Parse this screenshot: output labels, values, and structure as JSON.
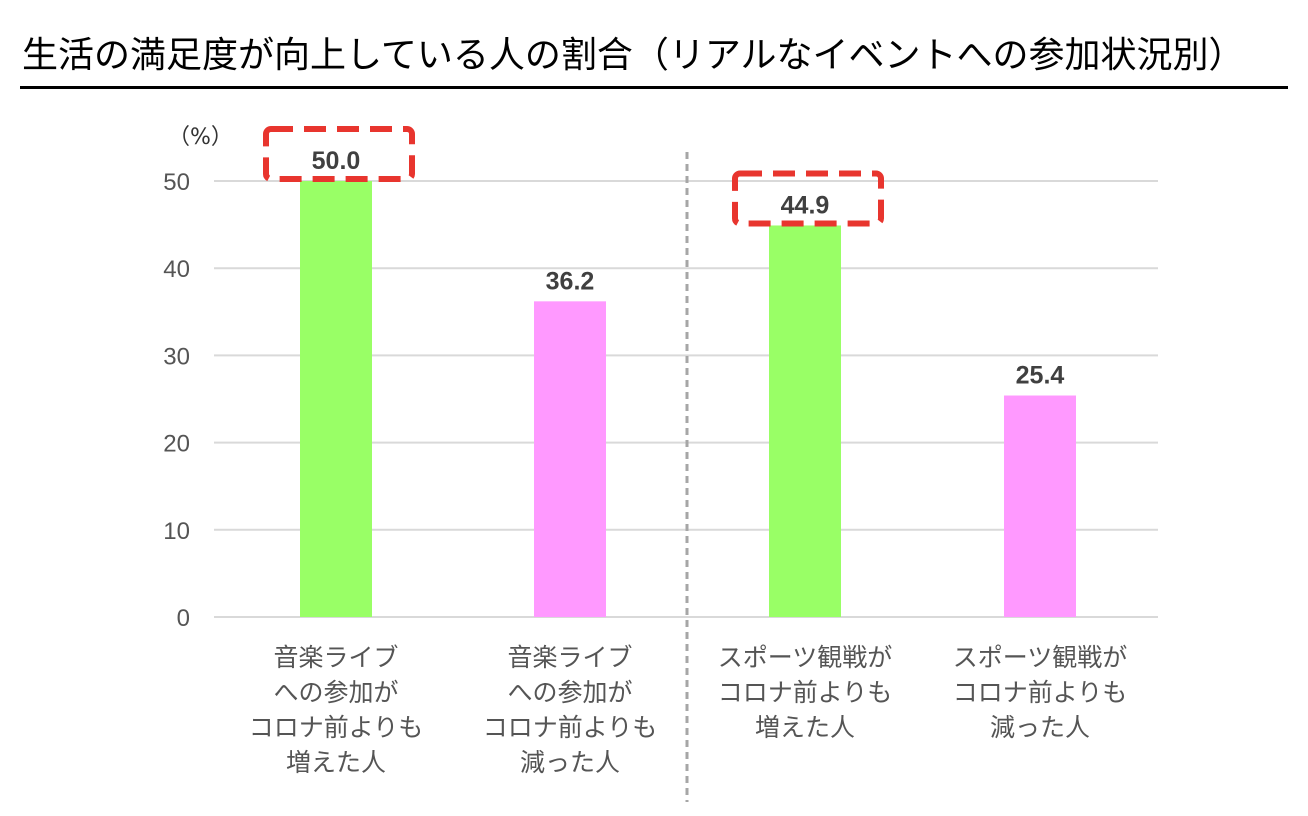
{
  "title": "生活の満足度が向上している人の割合（リアルなイベントへの参加状況別）",
  "colors": {
    "increased": "#99ff66",
    "decreased": "#ff99ff",
    "highlight": "#e8352e",
    "grid": "#d9d9d9",
    "separator": "#a6a6a6"
  },
  "chart_data": {
    "type": "bar",
    "title": "生活の満足度が向上している人の割合（リアルなイベントへの参加状況別）",
    "unit_label": "（%）",
    "ylim": [
      0,
      50
    ],
    "yticks": [
      "0",
      "10",
      "20",
      "30",
      "40",
      "50"
    ],
    "grid": true,
    "groups_separated_by_dashed_line": true,
    "categories": [
      {
        "label_lines": [
          "音楽ライブ",
          "への参加が",
          "コロナ前よりも",
          "増えた人"
        ],
        "value": 50.0,
        "value_label": "50.0",
        "color": "#99ff66",
        "highlighted": true
      },
      {
        "label_lines": [
          "音楽ライブ",
          "への参加が",
          "コロナ前よりも",
          "減った人"
        ],
        "value": 36.2,
        "value_label": "36.2",
        "color": "#ff99ff",
        "highlighted": false
      },
      {
        "label_lines": [
          "スポーツ観戦が",
          "コロナ前よりも",
          "増えた人"
        ],
        "value": 44.9,
        "value_label": "44.9",
        "color": "#99ff66",
        "highlighted": true
      },
      {
        "label_lines": [
          "スポーツ観戦が",
          "コロナ前よりも",
          "減った人"
        ],
        "value": 25.4,
        "value_label": "25.4",
        "color": "#ff99ff",
        "highlighted": false
      }
    ]
  }
}
